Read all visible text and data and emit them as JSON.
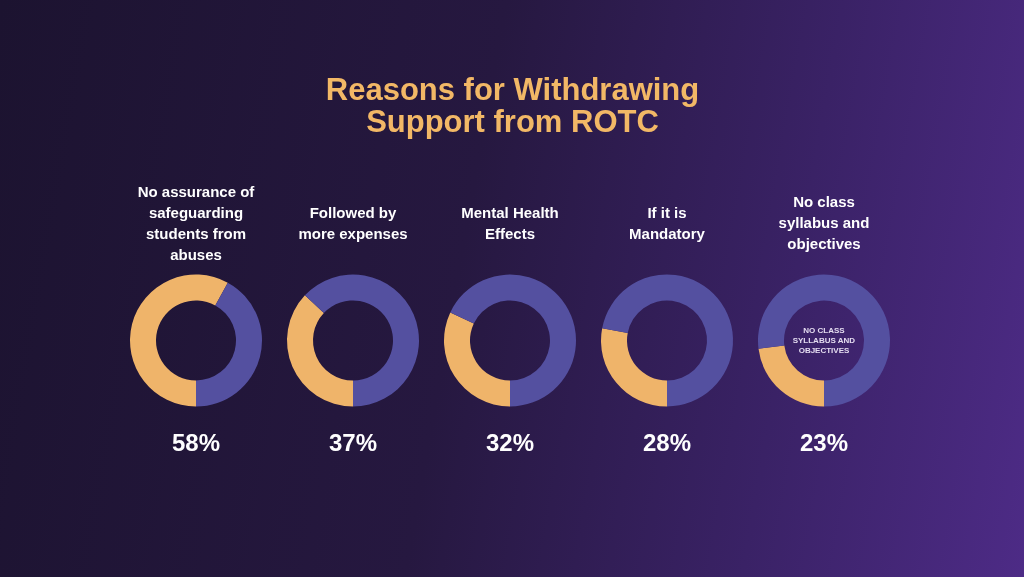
{
  "chart_data": [
    {
      "type": "other",
      "title": "Reasons for Withdrawing Support from ROTC"
    },
    {
      "type": "donut",
      "title": "No assurance of safeguarding students from abuses",
      "categories": [
        null,
        null
      ],
      "values": [
        58,
        42
      ],
      "colors": [
        "#efb46a",
        "#5450a0"
      ],
      "value_labels": [
        "58%",
        null
      ]
    },
    {
      "type": "donut",
      "title": "Followed by more expenses",
      "categories": [
        null,
        null
      ],
      "values": [
        37,
        63
      ],
      "colors": [
        "#efb46a",
        "#5450a0"
      ],
      "value_labels": [
        "37%",
        null
      ]
    },
    {
      "type": "donut",
      "title": "Mental Health Effects",
      "categories": [
        null,
        null
      ],
      "values": [
        32,
        68
      ],
      "colors": [
        "#efb46a",
        "#5450a0"
      ],
      "value_labels": [
        "32%",
        null
      ]
    },
    {
      "type": "donut",
      "title": "If it is Mandatory",
      "categories": [
        null,
        null
      ],
      "values": [
        28,
        72
      ],
      "colors": [
        "#efb46a",
        "#5450a0"
      ],
      "value_labels": [
        "28%",
        null
      ]
    },
    {
      "type": "donut",
      "title": "No class syllabus and objectives",
      "categories": [
        null,
        null
      ],
      "values": [
        23,
        77
      ],
      "colors": [
        "#efb46a",
        "#5450a0"
      ],
      "value_labels": [
        "23%",
        null
      ],
      "annotations": [
        "NO CLASS SYLLABUS AND OBJECTIVES"
      ]
    }
  ]
}
